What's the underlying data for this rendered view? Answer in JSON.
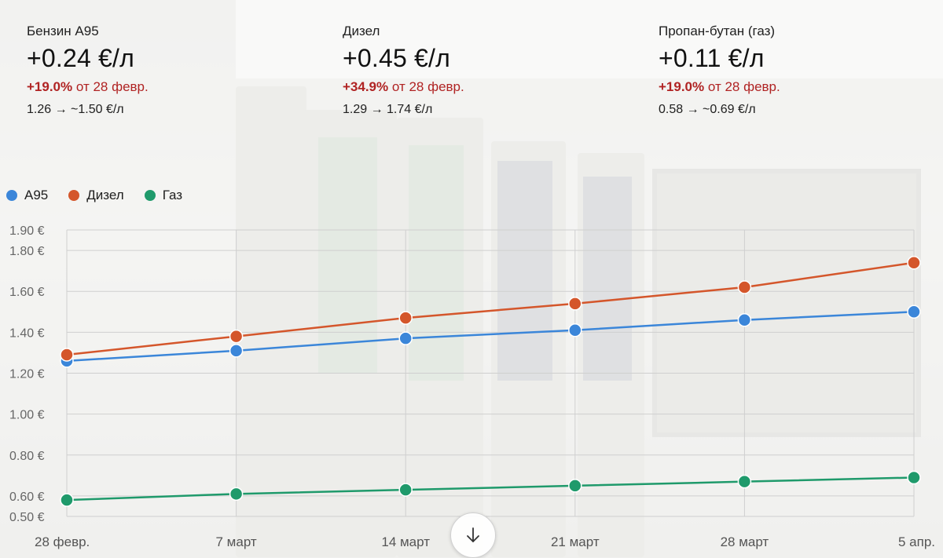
{
  "cards": [
    {
      "name": "Бензин А95",
      "delta": "+0.24 €/л",
      "pct": "+19.0%",
      "pct_suffix": " от 28 февр.",
      "range": "1.26 → ~1.50 €/л"
    },
    {
      "name": "Дизел",
      "delta": "+0.45 €/л",
      "pct": "+34.9%",
      "pct_suffix": " от 28 февр.",
      "range": "1.29 → 1.74 €/л"
    },
    {
      "name": "Пропан-бутан (газ)",
      "delta": "+0.11 €/л",
      "pct": "+19.0%",
      "pct_suffix": " от 28 февр.",
      "range": "0.58 → ~0.69 €/л"
    }
  ],
  "colors": {
    "a95": "#3b86d9",
    "diesel": "#d4562b",
    "gas": "#1f9a6b",
    "negative": "#b02323"
  },
  "scroll_button_icon": "arrow-down-icon",
  "chart_data": {
    "type": "line",
    "x": [
      "28 февр.",
      "7 март",
      "14 март",
      "21 март",
      "28 март",
      "5 апр."
    ],
    "series": [
      {
        "name": "А95",
        "color": "#3b86d9",
        "values": [
          1.26,
          1.31,
          1.37,
          1.41,
          1.46,
          1.5
        ]
      },
      {
        "name": "Дизел",
        "color": "#d4562b",
        "values": [
          1.29,
          1.38,
          1.47,
          1.54,
          1.62,
          1.74
        ]
      },
      {
        "name": "Газ",
        "color": "#1f9a6b",
        "values": [
          0.58,
          0.61,
          0.63,
          0.65,
          0.67,
          0.69
        ]
      }
    ],
    "yticks": [
      0.5,
      0.6,
      0.8,
      1.0,
      1.2,
      1.4,
      1.6,
      1.8,
      1.9
    ],
    "ytick_labels": [
      "0.50 €",
      "0.60 €",
      "0.80 €",
      "1.00 €",
      "1.20 €",
      "1.40 €",
      "1.60 €",
      "1.80 €",
      "1.90 €"
    ],
    "ylim": [
      0.5,
      1.9
    ],
    "grid": true,
    "legend": "top-left"
  }
}
